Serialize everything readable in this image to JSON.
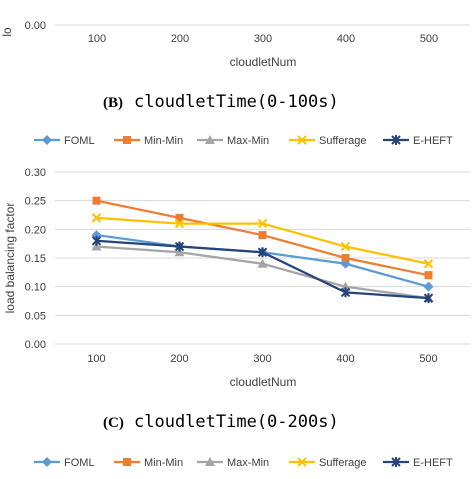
{
  "top_chart": {
    "ylabel_fragment": "lo",
    "y_tick_bottom": "0.00",
    "x_ticks": [
      "100",
      "200",
      "300",
      "400",
      "500"
    ],
    "xlabel": "cloudletNum"
  },
  "caption_b": {
    "letter": "(B)",
    "text": "cloudletTime(0-100s)"
  },
  "caption_c": {
    "letter": "(C)",
    "text": "cloudletTime(0-200s)"
  },
  "legend_bottom": [
    "FOML",
    "Min-Min",
    "Max-Min",
    "Sufferage",
    "E-HEFT"
  ],
  "chart_data": {
    "type": "line",
    "title": "",
    "xlabel": "cloudletNum",
    "ylabel": "load balancing factor",
    "ylim": [
      0,
      0.3
    ],
    "yticks": [
      "0.00",
      "0.05",
      "0.10",
      "0.15",
      "0.20",
      "0.25",
      "0.30"
    ],
    "categories": [
      "100",
      "200",
      "300",
      "400",
      "500"
    ],
    "legend_position": "top",
    "series": [
      {
        "name": "FOML",
        "color": "#5b9bd5",
        "marker": "diamond",
        "values": [
          0.19,
          0.17,
          0.16,
          0.14,
          0.1
        ]
      },
      {
        "name": "Min-Min",
        "color": "#ed7d31",
        "marker": "square",
        "values": [
          0.25,
          0.22,
          0.19,
          0.15,
          0.12
        ]
      },
      {
        "name": "Max-Min",
        "color": "#a5a5a5",
        "marker": "triangle",
        "values": [
          0.17,
          0.16,
          0.14,
          0.1,
          0.08
        ]
      },
      {
        "name": "Sufferage",
        "color": "#ffc000",
        "marker": "x",
        "values": [
          0.22,
          0.21,
          0.21,
          0.17,
          0.14
        ]
      },
      {
        "name": "E-HEFT",
        "color": "#264478",
        "marker": "star",
        "values": [
          0.18,
          0.17,
          0.16,
          0.09,
          0.08
        ]
      }
    ]
  }
}
